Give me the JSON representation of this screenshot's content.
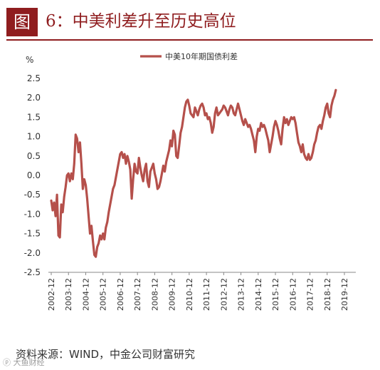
{
  "header": {
    "figure_label": "图",
    "title": "6：中美利差升至历史高位"
  },
  "source_note": "资料来源：WIND，中金公司财富研究",
  "watermark": "ⓟ 大鱼财经",
  "colors": {
    "accent": "#8f1d1f",
    "series": "#b5504b"
  },
  "chart_data": {
    "type": "line",
    "title": "",
    "xlabel": "",
    "ylabel": "%",
    "ylim": [
      -2.5,
      2.5
    ],
    "yticks": [
      "2.5",
      "2.0",
      "1.5",
      "1.0",
      "0.5",
      "0.0",
      "-0.5",
      "-1.0",
      "-1.5",
      "-2.0",
      "-2.5"
    ],
    "xticks": [
      "2002-12",
      "2003-12",
      "2004-12",
      "2005-12",
      "2006-12",
      "2007-12",
      "2008-12",
      "2009-12",
      "2010-12",
      "2011-12",
      "2012-12",
      "2013-12",
      "2014-12",
      "2015-12",
      "2016-12",
      "2017-12",
      "2018-12",
      "2019-12"
    ],
    "legend": "top-center",
    "grid": false,
    "series": [
      {
        "name": "中美10年期国债利差",
        "points": [
          [
            "2002-12",
            -0.65
          ],
          [
            "2003-01",
            -0.9
          ],
          [
            "2003-02",
            -0.7
          ],
          [
            "2003-03",
            -1.05
          ],
          [
            "2003-04",
            -0.5
          ],
          [
            "2003-05",
            -1.55
          ],
          [
            "2003-06",
            -1.6
          ],
          [
            "2003-07",
            -0.75
          ],
          [
            "2003-08",
            -0.95
          ],
          [
            "2003-09",
            -0.55
          ],
          [
            "2003-10",
            -0.3
          ],
          [
            "2003-11",
            0.0
          ],
          [
            "2003-12",
            0.05
          ],
          [
            "2004-01",
            -0.15
          ],
          [
            "2004-02",
            0.05
          ],
          [
            "2004-03",
            -0.1
          ],
          [
            "2004-04",
            0.3
          ],
          [
            "2004-05",
            1.05
          ],
          [
            "2004-06",
            0.95
          ],
          [
            "2004-07",
            0.6
          ],
          [
            "2004-08",
            0.85
          ],
          [
            "2004-09",
            0.3
          ],
          [
            "2004-10",
            -0.35
          ],
          [
            "2004-11",
            -0.1
          ],
          [
            "2004-12",
            -0.25
          ],
          [
            "2005-01",
            -0.6
          ],
          [
            "2005-02",
            -1.05
          ],
          [
            "2005-03",
            -1.5
          ],
          [
            "2005-04",
            -1.3
          ],
          [
            "2005-05",
            -1.7
          ],
          [
            "2005-06",
            -2.05
          ],
          [
            "2005-07",
            -2.1
          ],
          [
            "2005-08",
            -1.85
          ],
          [
            "2005-09",
            -1.75
          ],
          [
            "2005-10",
            -1.55
          ],
          [
            "2005-11",
            -1.65
          ],
          [
            "2005-12",
            -1.5
          ],
          [
            "2006-01",
            -1.65
          ],
          [
            "2006-02",
            -1.35
          ],
          [
            "2006-03",
            -1.2
          ],
          [
            "2006-04",
            -0.95
          ],
          [
            "2006-05",
            -0.75
          ],
          [
            "2006-06",
            -0.55
          ],
          [
            "2006-07",
            -0.35
          ],
          [
            "2006-08",
            -0.25
          ],
          [
            "2006-09",
            -0.05
          ],
          [
            "2006-10",
            0.15
          ],
          [
            "2006-11",
            0.35
          ],
          [
            "2006-12",
            0.55
          ],
          [
            "2007-01",
            0.6
          ],
          [
            "2007-02",
            0.45
          ],
          [
            "2007-03",
            0.55
          ],
          [
            "2007-04",
            0.3
          ],
          [
            "2007-05",
            0.5
          ],
          [
            "2007-06",
            0.35
          ],
          [
            "2007-07",
            0.15
          ],
          [
            "2007-08",
            -0.6
          ],
          [
            "2007-09",
            -0.1
          ],
          [
            "2007-10",
            0.3
          ],
          [
            "2007-11",
            0.1
          ],
          [
            "2007-12",
            0.05
          ],
          [
            "2008-01",
            0.45
          ],
          [
            "2008-02",
            0.2
          ],
          [
            "2008-03",
            0.0
          ],
          [
            "2008-04",
            -0.15
          ],
          [
            "2008-05",
            0.15
          ],
          [
            "2008-06",
            0.3
          ],
          [
            "2008-07",
            -0.15
          ],
          [
            "2008-08",
            -0.3
          ],
          [
            "2008-09",
            0.1
          ],
          [
            "2008-10",
            0.2
          ],
          [
            "2008-11",
            0.3
          ],
          [
            "2008-12",
            0.05
          ],
          [
            "2009-01",
            -0.1
          ],
          [
            "2009-02",
            -0.35
          ],
          [
            "2009-03",
            -0.3
          ],
          [
            "2009-04",
            -0.15
          ],
          [
            "2009-05",
            0.05
          ],
          [
            "2009-06",
            0.25
          ],
          [
            "2009-07",
            0.1
          ],
          [
            "2009-08",
            0.35
          ],
          [
            "2009-09",
            0.5
          ],
          [
            "2009-10",
            0.65
          ],
          [
            "2009-11",
            0.9
          ],
          [
            "2009-12",
            0.75
          ],
          [
            "2010-01",
            1.15
          ],
          [
            "2010-02",
            1.05
          ],
          [
            "2010-03",
            0.5
          ],
          [
            "2010-04",
            0.45
          ],
          [
            "2010-05",
            0.75
          ],
          [
            "2010-06",
            1.1
          ],
          [
            "2010-07",
            1.25
          ],
          [
            "2010-08",
            1.5
          ],
          [
            "2010-09",
            1.75
          ],
          [
            "2010-10",
            1.9
          ],
          [
            "2010-11",
            1.95
          ],
          [
            "2010-12",
            1.8
          ],
          [
            "2011-01",
            1.6
          ],
          [
            "2011-02",
            1.55
          ],
          [
            "2011-03",
            1.5
          ],
          [
            "2011-04",
            1.75
          ],
          [
            "2011-05",
            1.65
          ],
          [
            "2011-06",
            1.55
          ],
          [
            "2011-07",
            1.7
          ],
          [
            "2011-08",
            1.8
          ],
          [
            "2011-09",
            1.85
          ],
          [
            "2011-10",
            1.75
          ],
          [
            "2011-11",
            1.55
          ],
          [
            "2011-12",
            1.6
          ],
          [
            "2012-01",
            1.45
          ],
          [
            "2012-02",
            1.5
          ],
          [
            "2012-03",
            1.35
          ],
          [
            "2012-04",
            1.1
          ],
          [
            "2012-05",
            1.25
          ],
          [
            "2012-06",
            1.6
          ],
          [
            "2012-07",
            1.75
          ],
          [
            "2012-08",
            1.55
          ],
          [
            "2012-09",
            1.6
          ],
          [
            "2012-10",
            1.65
          ],
          [
            "2012-11",
            1.7
          ],
          [
            "2012-12",
            1.8
          ],
          [
            "2013-01",
            1.75
          ],
          [
            "2013-02",
            1.65
          ],
          [
            "2013-03",
            1.55
          ],
          [
            "2013-04",
            1.7
          ],
          [
            "2013-05",
            1.8
          ],
          [
            "2013-06",
            1.75
          ],
          [
            "2013-07",
            1.6
          ],
          [
            "2013-08",
            1.55
          ],
          [
            "2013-09",
            1.7
          ],
          [
            "2013-10",
            1.85
          ],
          [
            "2013-11",
            1.7
          ],
          [
            "2013-12",
            1.55
          ],
          [
            "2014-01",
            1.4
          ],
          [
            "2014-02",
            1.3
          ],
          [
            "2014-03",
            1.45
          ],
          [
            "2014-04",
            1.35
          ],
          [
            "2014-05",
            1.25
          ],
          [
            "2014-06",
            1.3
          ],
          [
            "2014-07",
            1.2
          ],
          [
            "2014-08",
            1.05
          ],
          [
            "2014-09",
            0.9
          ],
          [
            "2014-10",
            0.6
          ],
          [
            "2014-11",
            1.0
          ],
          [
            "2014-12",
            1.2
          ],
          [
            "2015-01",
            1.15
          ],
          [
            "2015-02",
            1.35
          ],
          [
            "2015-03",
            1.25
          ],
          [
            "2015-04",
            1.3
          ],
          [
            "2015-05",
            1.2
          ],
          [
            "2015-06",
            1.05
          ],
          [
            "2015-07",
            0.9
          ],
          [
            "2015-08",
            0.6
          ],
          [
            "2015-09",
            0.8
          ],
          [
            "2015-10",
            1.0
          ],
          [
            "2015-11",
            1.25
          ],
          [
            "2015-12",
            1.4
          ],
          [
            "2016-01",
            1.3
          ],
          [
            "2016-02",
            1.15
          ],
          [
            "2016-03",
            0.95
          ],
          [
            "2016-04",
            0.8
          ],
          [
            "2016-05",
            1.2
          ],
          [
            "2016-06",
            1.5
          ],
          [
            "2016-07",
            1.35
          ],
          [
            "2016-08",
            1.45
          ],
          [
            "2016-09",
            1.3
          ],
          [
            "2016-10",
            1.4
          ],
          [
            "2016-11",
            1.5
          ],
          [
            "2016-12",
            1.45
          ],
          [
            "2017-01",
            1.5
          ],
          [
            "2017-02",
            1.35
          ],
          [
            "2017-03",
            1.1
          ],
          [
            "2017-04",
            0.85
          ],
          [
            "2017-05",
            0.75
          ],
          [
            "2017-06",
            0.6
          ],
          [
            "2017-07",
            0.8
          ],
          [
            "2017-08",
            0.55
          ],
          [
            "2017-09",
            0.45
          ],
          [
            "2017-10",
            0.4
          ],
          [
            "2017-11",
            0.55
          ],
          [
            "2017-12",
            0.4
          ],
          [
            "2018-01",
            0.45
          ],
          [
            "2018-02",
            0.6
          ],
          [
            "2018-03",
            0.8
          ],
          [
            "2018-04",
            0.9
          ],
          [
            "2018-05",
            1.1
          ],
          [
            "2018-06",
            1.25
          ],
          [
            "2018-07",
            1.3
          ],
          [
            "2018-08",
            1.2
          ],
          [
            "2018-09",
            1.4
          ],
          [
            "2018-10",
            1.55
          ],
          [
            "2018-11",
            1.75
          ],
          [
            "2018-12",
            1.85
          ],
          [
            "2019-01",
            1.6
          ],
          [
            "2019-02",
            1.5
          ],
          [
            "2019-03",
            1.8
          ],
          [
            "2019-04",
            1.95
          ],
          [
            "2019-05",
            2.05
          ],
          [
            "2019-06",
            2.2
          ]
        ]
      }
    ]
  }
}
